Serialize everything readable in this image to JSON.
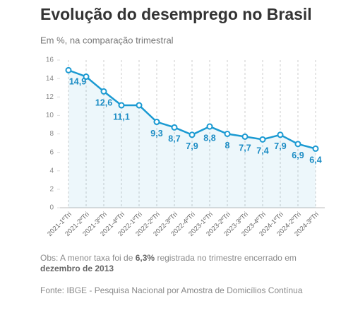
{
  "chart_data": {
    "type": "line",
    "title": "Evolução do desemprego no Brasil",
    "subtitle": "Em %, na comparação trimestral",
    "categories": [
      "2021-1ºTri",
      "2021-2ºTri",
      "2021-3ºTri",
      "2021-4ºTri",
      "2022-1ºTri",
      "2022-2ºTri",
      "2022-3ºTri",
      "2022-4ºTri",
      "2023-1ºTri",
      "2023-2ºTri",
      "2023-3ºTri",
      "2023-4ºTri",
      "2024-1ºTri",
      "2024-2ºTri",
      "2024-3ºTri"
    ],
    "values": [
      14.9,
      14.2,
      12.6,
      11.1,
      11.1,
      9.3,
      8.7,
      7.9,
      8.8,
      8,
      7.7,
      7.4,
      7.9,
      6.9,
      6.4
    ],
    "value_labels": [
      "14,9",
      null,
      "12,6",
      "11,1",
      null,
      "9,3",
      "8,7",
      "7,9",
      "8,8",
      "8",
      "7,7",
      "7,4",
      "7,9",
      "6,9",
      "6,4"
    ],
    "color": "#1b9ad2",
    "ylim": [
      0,
      16
    ],
    "yticks": [
      0,
      2,
      4,
      6,
      8,
      10,
      12,
      14,
      16
    ],
    "note": [
      "Obs: A menor taxa foi de ",
      "6,3%",
      " registrada no trimestre encerrado em",
      "dezembro de 2013"
    ],
    "source": "Fonte: IBGE - Pesquisa Nacional por Amostra de Domicílios Contínua"
  }
}
